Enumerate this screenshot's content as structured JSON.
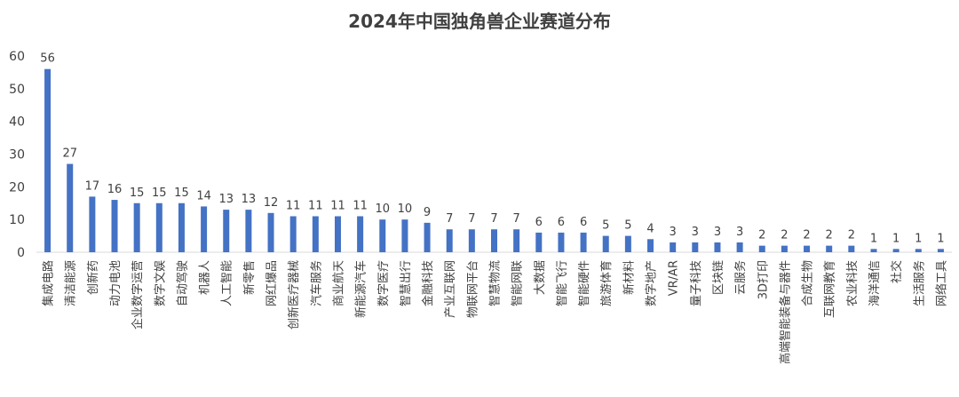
{
  "chart_data": {
    "type": "bar",
    "title": "2024年中国独角兽企业赛道分布",
    "xlabel": "",
    "ylabel": "",
    "ylim": [
      0,
      60
    ],
    "yticks": [
      0,
      10,
      20,
      30,
      40,
      50,
      60
    ],
    "grid": false,
    "legend": "none",
    "bar_color": "#4472C4",
    "categories": [
      "集成电路",
      "清洁能源",
      "创新药",
      "动力电池",
      "企业数字运营",
      "数字文娱",
      "自动驾驶",
      "机器人",
      "人工智能",
      "新零售",
      "网红爆品",
      "创新医疗器械",
      "汽车服务",
      "商业航天",
      "新能源汽车",
      "数字医疗",
      "智慧出行",
      "金融科技",
      "产业互联网",
      "物联网平台",
      "智慧物流",
      "智能网联",
      "大数据",
      "智能飞行",
      "智能硬件",
      "旅游体育",
      "新材料",
      "数字地产",
      "VR/AR",
      "量子科技",
      "区块链",
      "云服务",
      "3D打印",
      "高端智能装备与器件",
      "合成生物",
      "互联网教育",
      "农业科技",
      "海洋通信",
      "社交",
      "生活服务",
      "网络工具"
    ],
    "values": [
      56,
      27,
      17,
      16,
      15,
      15,
      15,
      14,
      13,
      13,
      12,
      11,
      11,
      11,
      11,
      10,
      10,
      9,
      7,
      7,
      7,
      7,
      6,
      6,
      6,
      5,
      5,
      4,
      3,
      3,
      3,
      3,
      2,
      2,
      2,
      2,
      2,
      1,
      1,
      1,
      1
    ]
  }
}
